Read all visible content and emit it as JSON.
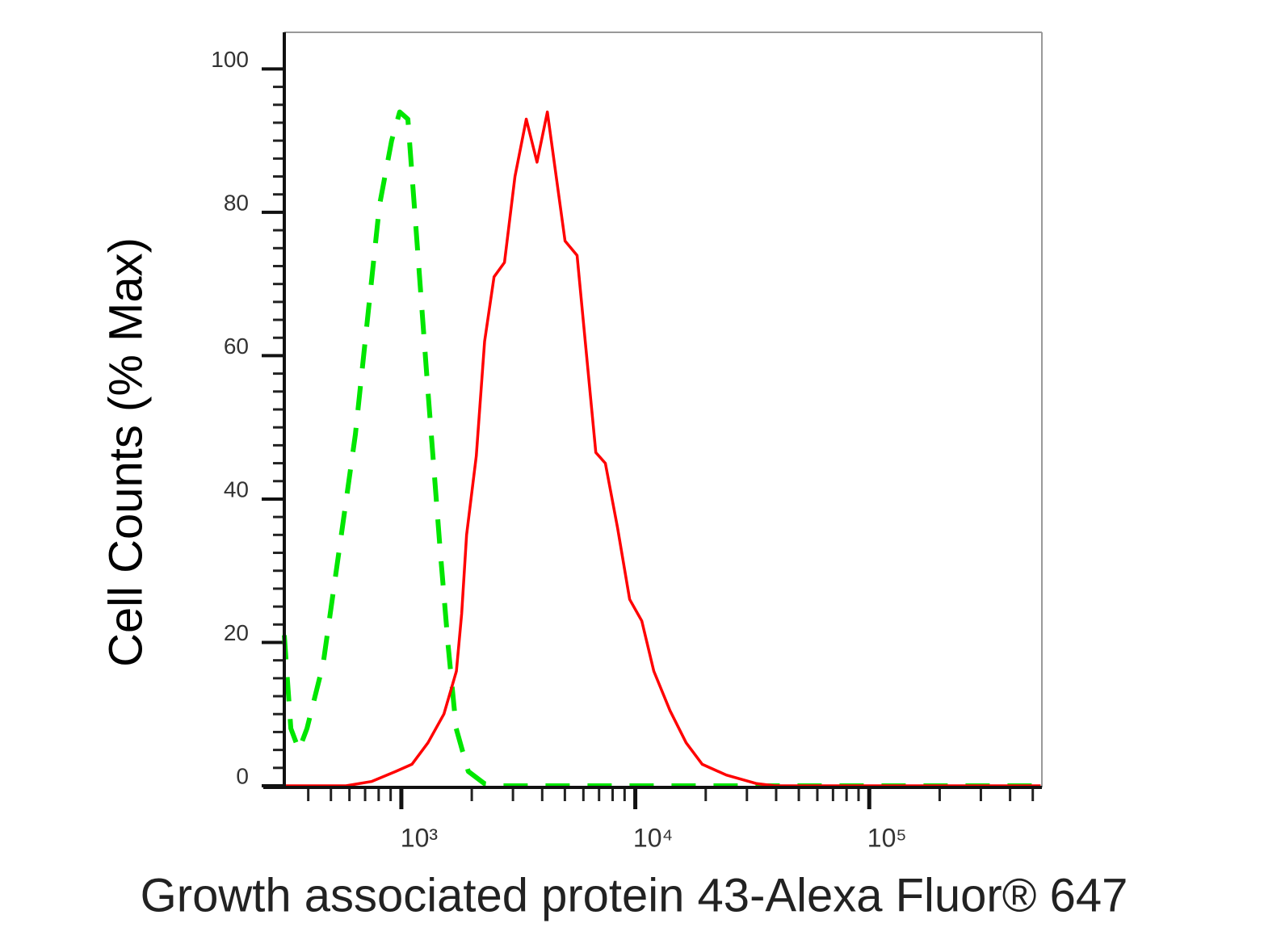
{
  "chart_data": {
    "type": "line",
    "xlabel": "Growth associated protein 43-Alexa Fluor® 647",
    "ylabel": "Cell Counts (% Max)",
    "xscale": "log",
    "xlim": [
      316,
      547000
    ],
    "ylim": [
      0,
      105
    ],
    "yticks": [
      0,
      20,
      40,
      60,
      80,
      100
    ],
    "yminorticks": [
      2.5,
      5,
      7.5,
      10,
      12.5,
      15,
      17.5,
      22.5,
      25,
      27.5,
      30,
      32.5,
      35,
      37.5,
      42.5,
      45,
      47.5,
      50,
      52.5,
      55,
      57.5,
      62.5,
      65,
      67.5,
      70,
      72.5,
      75,
      77.5,
      82.5,
      85,
      87.5,
      90,
      92.5,
      95,
      97.5
    ],
    "xticks": [
      {
        "value": 1000,
        "label": "10³"
      },
      {
        "value": 10000,
        "label": "10⁴"
      },
      {
        "value": 100000,
        "label": "10⁵"
      }
    ],
    "xminorticks": [
      400,
      500,
      600,
      700,
      800,
      900,
      2000,
      3000,
      4000,
      5000,
      6000,
      7000,
      8000,
      9000,
      20000,
      30000,
      40000,
      50000,
      60000,
      70000,
      80000,
      90000,
      200000,
      300000,
      400000,
      500000
    ],
    "series": [
      {
        "color": "#00e600",
        "dashed": true,
        "x": [
          316,
          337,
          365,
          395,
          463,
          543,
          636,
          716,
          807,
          909,
          984,
          1066,
          1154,
          1300,
          1464,
          1585,
          1716,
          1933,
          2266,
          2655,
          540000
        ],
        "values": [
          21,
          8,
          5,
          8,
          17,
          33,
          49,
          65,
          81,
          90,
          94,
          93,
          78,
          55,
          33,
          19.5,
          8,
          2,
          0.3,
          0,
          0
        ]
      },
      {
        "color": "#ff0000",
        "dashed": false,
        "x": [
          316,
          580,
          745,
          946,
          1110,
          1300,
          1520,
          1720,
          1810,
          1900,
          2090,
          2270,
          2490,
          2760,
          3060,
          3420,
          3800,
          4210,
          5010,
          5640,
          6110,
          6780,
          7450,
          8400,
          9460,
          10660,
          12000,
          14070,
          16490,
          19330,
          24500,
          33000,
          39510,
          540000
        ],
        "values": [
          0,
          0,
          0.6,
          2,
          3,
          6,
          10,
          16,
          24,
          35,
          46,
          62,
          71,
          73,
          85,
          93,
          87,
          94,
          76,
          74,
          62,
          46.5,
          45,
          36,
          26,
          23,
          16,
          10.5,
          6,
          3,
          1.5,
          0.3,
          0,
          0
        ]
      }
    ]
  }
}
